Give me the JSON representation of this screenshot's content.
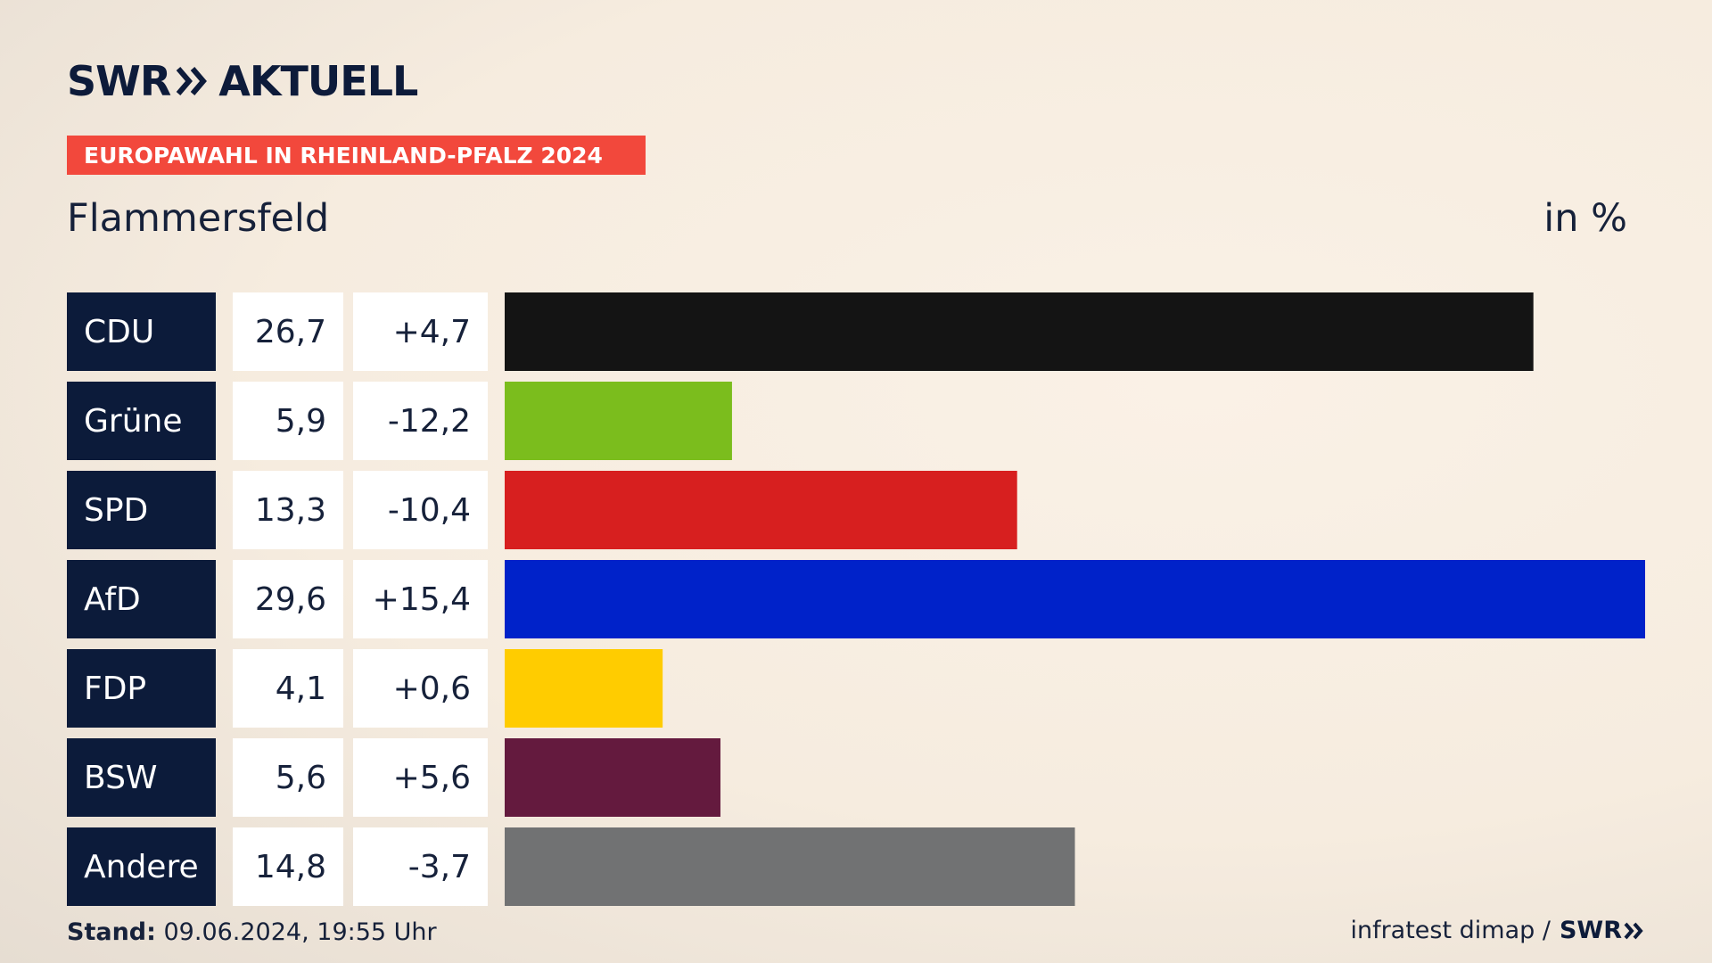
{
  "header": {
    "brand_swr": "SWR",
    "brand_aktuell": "AKTUELL",
    "kicker": "EUROPAWAHL IN RHEINLAND-PFALZ 2024",
    "title": "Flammersfeld",
    "unit": "in %"
  },
  "chart_data": {
    "type": "bar",
    "orientation": "horizontal",
    "categories": [
      "CDU",
      "Grüne",
      "SPD",
      "AfD",
      "FDP",
      "BSW",
      "Andere"
    ],
    "values": [
      26.7,
      5.9,
      13.3,
      29.6,
      4.1,
      5.6,
      14.8
    ],
    "value_labels": [
      "26,7",
      "5,9",
      "13,3",
      "29,6",
      "4,1",
      "5,6",
      "14,8"
    ],
    "change_labels": [
      "+4,7",
      "-12,2",
      "-10,4",
      "+15,4",
      "+0,6",
      "+5,6",
      "-3,7"
    ],
    "colors": [
      "#141414",
      "#7bbd1d",
      "#d71f1f",
      "#0022c9",
      "#ffcc00",
      "#641a3e",
      "#717273"
    ],
    "label_bg": "#0c1b3a",
    "xlim": [
      0,
      29.6
    ],
    "grid": false
  },
  "footer": {
    "stand_label": "Stand:",
    "stand_value": " 09.06.2024, 19:55 Uhr",
    "source": "infratest dimap /",
    "source_brand": "SWR"
  }
}
